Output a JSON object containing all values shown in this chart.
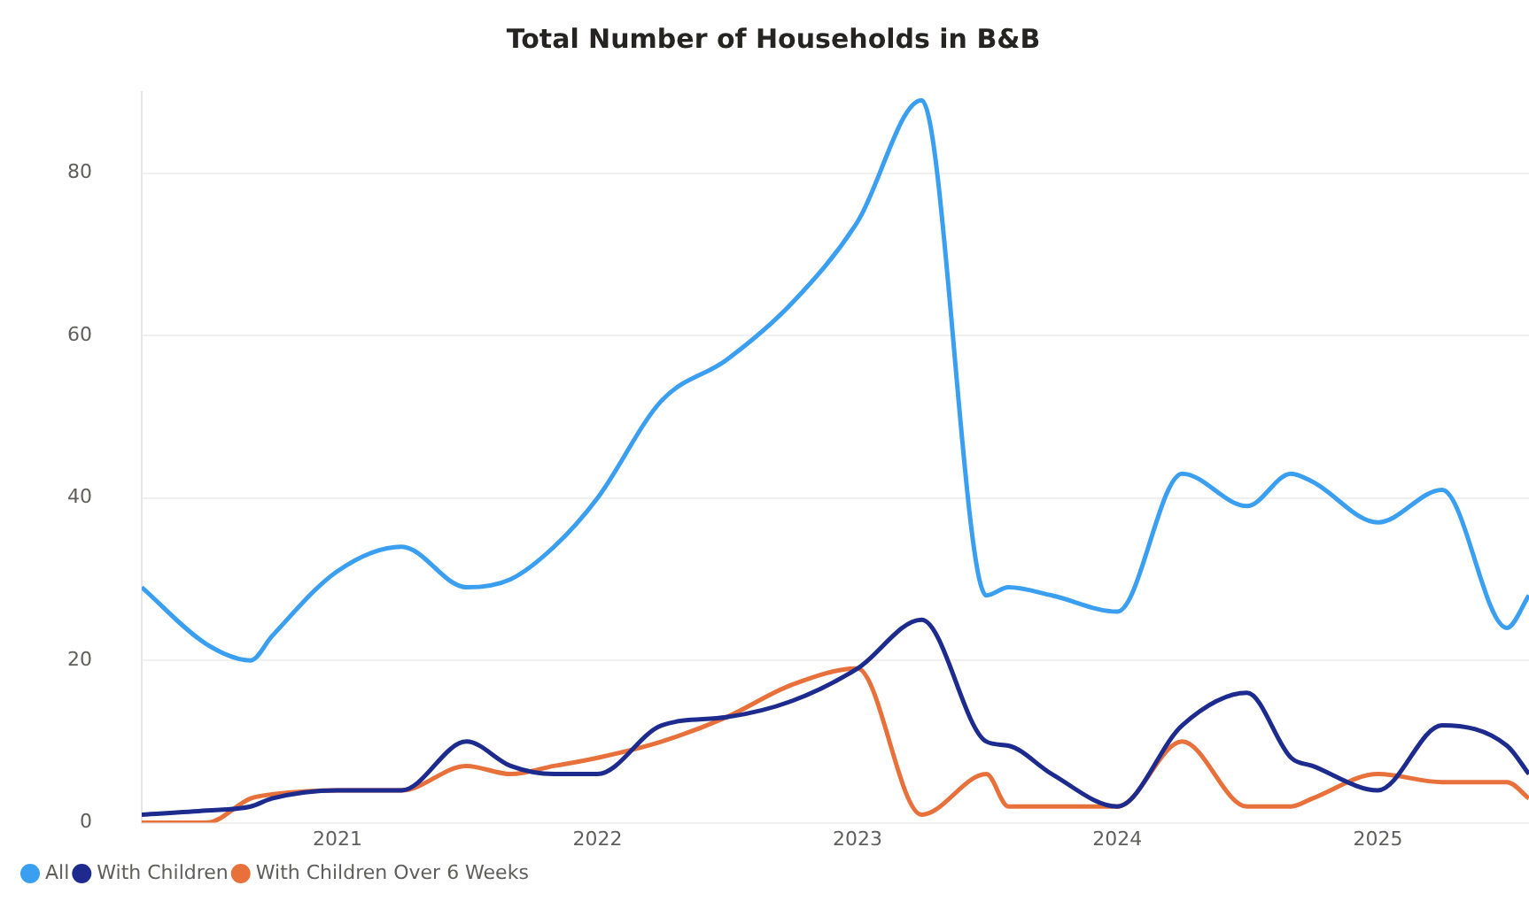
{
  "chart_data": {
    "type": "line",
    "title": "Total Number of Households in B&B",
    "x": [
      "2020-04",
      "2020-07",
      "2020-09",
      "2020-10",
      "2021-01",
      "2021-04",
      "2021-07",
      "2021-09",
      "2021-11",
      "2022-01",
      "2022-04",
      "2022-07",
      "2022-10",
      "2023-01",
      "2023-04",
      "2023-07",
      "2023-08",
      "2023-10",
      "2024-01",
      "2024-04",
      "2024-07",
      "2024-09",
      "2024-10",
      "2025-01",
      "2025-04",
      "2025-07",
      "2025-08"
    ],
    "series": [
      {
        "name": "All",
        "color": "#3a9ff0",
        "values": [
          29,
          22,
          20,
          23,
          31,
          34,
          29,
          30,
          34,
          40,
          52,
          57,
          64,
          74,
          89,
          28,
          29,
          28,
          26,
          43,
          39,
          43,
          42,
          37,
          41,
          24,
          28
        ]
      },
      {
        "name": "With Children",
        "color": "#1d2b8f",
        "values": [
          1,
          1.5,
          2,
          3,
          4,
          4,
          10,
          7,
          6,
          6,
          12,
          13,
          15,
          19,
          25,
          10,
          9.5,
          6,
          2,
          12,
          16,
          8,
          7,
          4,
          12,
          9.5,
          6
        ]
      },
      {
        "name": "With Children Over 6 Weeks",
        "color": "#e8703a",
        "values": [
          0,
          0,
          3,
          3.5,
          4,
          4,
          7,
          6,
          7,
          8,
          10,
          13,
          17,
          19,
          1,
          6,
          2,
          2,
          2,
          10,
          2,
          2,
          3,
          6,
          5,
          5,
          3
        ]
      }
    ],
    "xlim": [
      "2020-04",
      "2025-08"
    ],
    "xticks": [
      {
        "value": "2021",
        "label": "2021"
      },
      {
        "value": "2022",
        "label": "2022"
      },
      {
        "value": "2023",
        "label": "2023"
      },
      {
        "value": "2024",
        "label": "2024"
      },
      {
        "value": "2025",
        "label": "2025"
      }
    ],
    "ylim": [
      0,
      90
    ],
    "yticks": [
      0,
      20,
      40,
      60,
      80
    ],
    "grid": "y",
    "legend": "bottom left",
    "marker": "none",
    "line_style": "solid"
  }
}
